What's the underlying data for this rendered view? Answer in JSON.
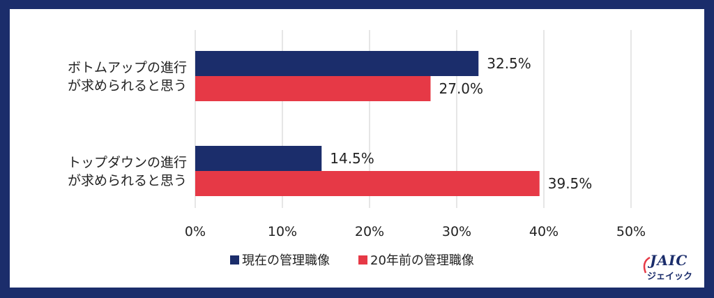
{
  "chart_data": {
    "type": "bar",
    "orientation": "horizontal",
    "categories": [
      [
        "ボトムアップの進行",
        "が求められると思う"
      ],
      [
        "トップダウンの進行",
        "が求められると思う"
      ]
    ],
    "series": [
      {
        "name": "現在の管理職像",
        "color": "#1b2d6b",
        "values": [
          32.5,
          14.5
        ],
        "labels": [
          "32.5%",
          "14.5%"
        ]
      },
      {
        "name": "20年前の管理職像",
        "color": "#e63946",
        "values": [
          27.0,
          39.5
        ],
        "labels": [
          "27.0%",
          "39.5%"
        ]
      }
    ],
    "xlim": [
      0,
      50
    ],
    "ticks": [
      0,
      10,
      20,
      30,
      40,
      50
    ],
    "tick_labels": [
      "0%",
      "10%",
      "20%",
      "30%",
      "40%",
      "50%"
    ],
    "grid": true,
    "legend_position": "bottom"
  },
  "logo": {
    "main": "JAIC",
    "sub": "ジェイック"
  }
}
